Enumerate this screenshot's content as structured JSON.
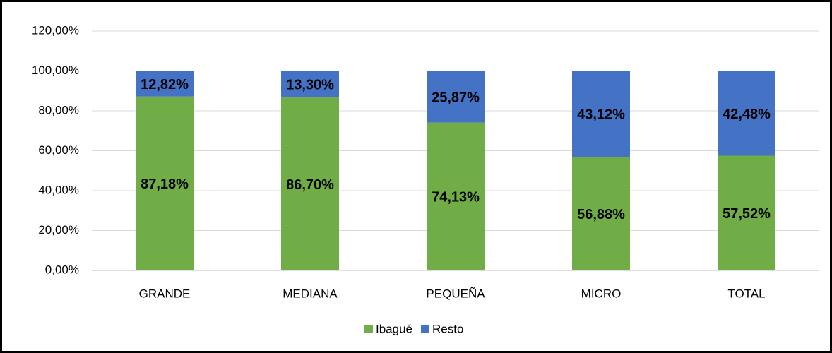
{
  "chart_data": {
    "type": "stacked_bar",
    "categories": [
      "GRANDE",
      "MEDIANA",
      "PEQUEÑA",
      "MICRO",
      "TOTAL"
    ],
    "series": [
      {
        "name": "Ibagué",
        "color": "#70ad47",
        "values": [
          87.18,
          86.7,
          74.13,
          56.88,
          57.52
        ],
        "value_labels": [
          "87,18%",
          "86,70%",
          "74,13%",
          "56,88%",
          "57,52%"
        ]
      },
      {
        "name": "Resto",
        "color": "#4472c4",
        "values": [
          12.82,
          13.3,
          25.87,
          43.12,
          42.48
        ],
        "value_labels": [
          "12,82%",
          "13,30%",
          "25,87%",
          "43,12%",
          "42,48%"
        ]
      }
    ],
    "ylim": [
      0,
      120
    ],
    "yticks": [
      {
        "value": 0,
        "label": "0,00%"
      },
      {
        "value": 20,
        "label": "20,00%"
      },
      {
        "value": 40,
        "label": "40,00%"
      },
      {
        "value": 60,
        "label": "60,00%"
      },
      {
        "value": 80,
        "label": "80,00%"
      },
      {
        "value": 100,
        "label": "100,00%"
      },
      {
        "value": 120,
        "label": "120,00%"
      }
    ],
    "grid": true,
    "legend": "bottom"
  }
}
